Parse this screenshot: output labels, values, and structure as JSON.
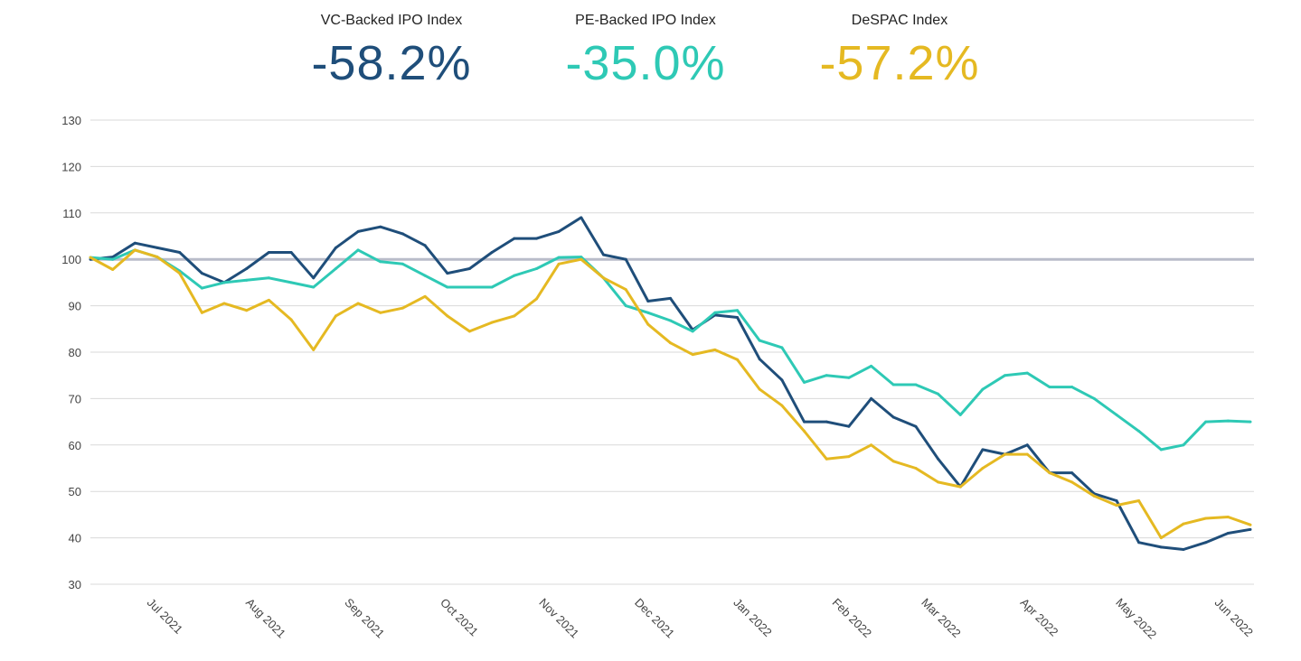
{
  "headers": [
    {
      "label": "VC-Backed IPO Index",
      "value": "-58.2%",
      "color": "#1f4e7a"
    },
    {
      "label": "PE-Backed IPO Index",
      "value": "-35.0%",
      "color": "#2ec9b5"
    },
    {
      "label": "DeSPAC Index",
      "value": "-57.2%",
      "color": "#e5b922"
    }
  ],
  "chart_data": {
    "type": "line",
    "title": "",
    "xlabel": "",
    "ylabel": "",
    "ylim": [
      30,
      130
    ],
    "yticks": [
      30,
      40,
      50,
      60,
      70,
      80,
      90,
      100,
      110,
      120,
      130
    ],
    "reference_line": 100,
    "grid": true,
    "xticks": [
      {
        "date": "2021-07-01",
        "label": "Jul 2021"
      },
      {
        "date": "2021-08-01",
        "label": "Aug 2021"
      },
      {
        "date": "2021-09-01",
        "label": "Sep 2021"
      },
      {
        "date": "2021-10-01",
        "label": "Oct 2021"
      },
      {
        "date": "2021-11-01",
        "label": "Nov 2021"
      },
      {
        "date": "2021-12-01",
        "label": "Dec 2021"
      },
      {
        "date": "2022-01-01",
        "label": "Jan 2022"
      },
      {
        "date": "2022-02-01",
        "label": "Feb 2022"
      },
      {
        "date": "2022-03-01",
        "label": "Mar 2022"
      },
      {
        "date": "2022-04-01",
        "label": "Apr 2022"
      },
      {
        "date": "2022-05-01",
        "label": "May 2022"
      },
      {
        "date": "2022-06-01",
        "label": "Jun 2022"
      }
    ],
    "x": [
      "2021-06-14",
      "2021-06-21",
      "2021-06-28",
      "2021-07-05",
      "2021-07-12",
      "2021-07-19",
      "2021-07-26",
      "2021-08-02",
      "2021-08-09",
      "2021-08-16",
      "2021-08-23",
      "2021-08-30",
      "2021-09-06",
      "2021-09-13",
      "2021-09-20",
      "2021-09-27",
      "2021-10-04",
      "2021-10-11",
      "2021-10-18",
      "2021-10-25",
      "2021-11-01",
      "2021-11-08",
      "2021-11-15",
      "2021-11-22",
      "2021-11-29",
      "2021-12-06",
      "2021-12-13",
      "2021-12-20",
      "2021-12-27",
      "2022-01-03",
      "2022-01-10",
      "2022-01-17",
      "2022-01-24",
      "2022-01-31",
      "2022-02-07",
      "2022-02-14",
      "2022-02-21",
      "2022-02-28",
      "2022-03-07",
      "2022-03-14",
      "2022-03-21",
      "2022-03-28",
      "2022-04-04",
      "2022-04-11",
      "2022-04-18",
      "2022-04-25",
      "2022-05-02",
      "2022-05-09",
      "2022-05-16",
      "2022-05-23",
      "2022-05-30",
      "2022-06-06",
      "2022-06-13"
    ],
    "series": [
      {
        "name": "VC-Backed IPO Index",
        "color": "#1f4e7a",
        "values": [
          100,
          100.5,
          103.5,
          102.5,
          101.5,
          97,
          95,
          98,
          101.5,
          101.5,
          96,
          102.5,
          106,
          107,
          105.5,
          103,
          97,
          98,
          101.5,
          104.5,
          104.5,
          106,
          109,
          101,
          100,
          91,
          91.6,
          84.8,
          88,
          87.5,
          78.5,
          74,
          65,
          65,
          64,
          70,
          66,
          64,
          57,
          51,
          59,
          58,
          60,
          54,
          54,
          49.5,
          48,
          39,
          38,
          37.5,
          39,
          41,
          41.8
        ]
      },
      {
        "name": "PE-Backed IPO Index",
        "color": "#2ec9b5",
        "values": [
          100.4,
          100,
          102,
          100.5,
          97.5,
          93.8,
          95,
          95.5,
          96,
          95,
          94,
          98,
          102,
          99.5,
          99,
          96.5,
          94,
          94,
          94,
          96.5,
          98,
          100.4,
          100.5,
          96,
          90,
          88.5,
          86.8,
          84.5,
          88.5,
          89,
          82.5,
          81,
          73.5,
          75,
          74.5,
          77,
          73,
          73,
          71,
          66.5,
          72,
          75,
          75.5,
          72.5,
          72.5,
          70,
          66.5,
          63,
          59,
          60,
          65,
          65.2,
          65
        ]
      },
      {
        "name": "DeSPAC Index",
        "color": "#e5b922",
        "values": [
          100.4,
          97.8,
          102,
          100.5,
          97,
          88.5,
          90.5,
          89,
          91.2,
          87,
          80.5,
          87.8,
          90.5,
          88.5,
          89.5,
          92,
          87.8,
          84.5,
          86.4,
          87.8,
          91.5,
          99,
          100,
          96,
          93.5,
          86,
          82,
          79.5,
          80.5,
          78.4,
          72,
          68.5,
          63,
          57,
          57.5,
          60,
          56.5,
          55,
          52,
          51,
          55,
          58,
          58,
          54,
          52,
          49,
          47,
          48,
          40,
          43,
          44.2,
          44.5,
          42.8
        ]
      }
    ]
  }
}
